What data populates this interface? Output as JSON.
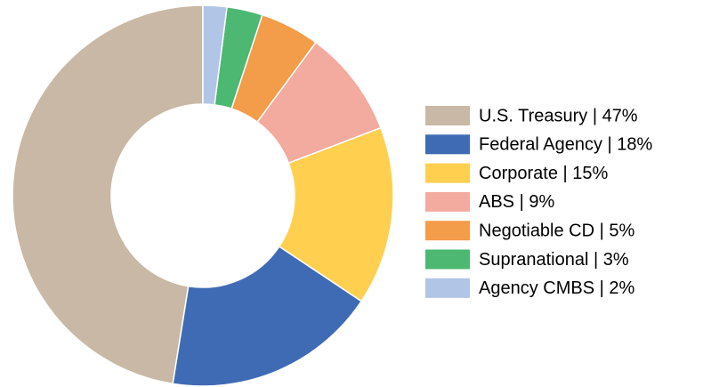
{
  "chart_data": {
    "type": "donut",
    "value_labels": [
      "U.S. Treasury | 47%",
      "Federal Agency | 18%",
      "Corporate | 15%",
      "ABS | 9%",
      "Negotiable CD | 5%",
      "Supranational | 3%",
      "Agency CMBS | 2%"
    ],
    "values": [
      47,
      18,
      15,
      9,
      5,
      3,
      2
    ],
    "colors": [
      "#c8b8a5",
      "#3f6bb4",
      "#ffcf50",
      "#f3aa9f",
      "#f39c49",
      "#4db872",
      "#b1c5e7"
    ],
    "legend": "right"
  }
}
